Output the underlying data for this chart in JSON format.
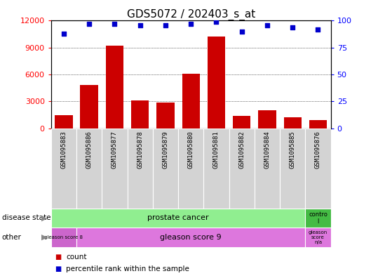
{
  "title": "GDS5072 / 202403_s_at",
  "samples": [
    "GSM1095883",
    "GSM1095886",
    "GSM1095877",
    "GSM1095878",
    "GSM1095879",
    "GSM1095880",
    "GSM1095881",
    "GSM1095882",
    "GSM1095884",
    "GSM1095885",
    "GSM1095876"
  ],
  "counts": [
    1500,
    4800,
    9200,
    3100,
    2900,
    6100,
    10200,
    1400,
    2000,
    1200,
    900
  ],
  "percentile": [
    88,
    97,
    97,
    96,
    96,
    97,
    99,
    90,
    96,
    94,
    92
  ],
  "ylim_left": [
    0,
    12000
  ],
  "ylim_right": [
    0,
    100
  ],
  "yticks_left": [
    0,
    3000,
    6000,
    9000,
    12000
  ],
  "yticks_right": [
    0,
    25,
    50,
    75,
    100
  ],
  "bar_color": "#cc0000",
  "dot_color": "#0000cc",
  "prostate_color": "#90ee90",
  "control_color": "#44bb44",
  "gleason8_color": "#cc66cc",
  "gleason9_color": "#dd77dd",
  "gleasonna_color": "#dd77dd",
  "sample_bg_color": "#d3d3d3",
  "title_fontsize": 11
}
